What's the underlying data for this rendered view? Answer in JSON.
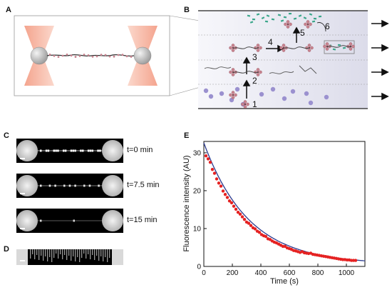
{
  "panels": {
    "a": "A",
    "b": "B",
    "c": "C",
    "d": "D",
    "e": "E"
  },
  "panel_b": {
    "step_labels": [
      "1",
      "2",
      "3",
      "4",
      "5",
      "6"
    ]
  },
  "panel_c": {
    "time_labels": [
      "t=0 min",
      "t=7.5 min",
      "t=15 min"
    ]
  },
  "colors": {
    "laser": "#f6b7a5",
    "bead": "#c9c9c9",
    "channel": "#eeeef6",
    "protein": "#c8838f",
    "fluor": "#3aa68a",
    "vesicle": "#9b91cf",
    "data_point": "#e52222",
    "fit_line": "#2b3a8f"
  },
  "chart_data": {
    "type": "scatter",
    "title": "",
    "xlabel": "Time (s)",
    "ylabel": "Fluorescence intensity (AU)",
    "xlim": [
      0,
      1130
    ],
    "ylim": [
      0,
      33
    ],
    "xticks": [
      0,
      200,
      400,
      600,
      800,
      1000
    ],
    "yticks": [
      0,
      10,
      20,
      30
    ],
    "grid": false,
    "series": [
      {
        "kind": "points",
        "x": [
          15,
          30,
          45,
          60,
          75,
          90,
          105,
          120,
          135,
          150,
          165,
          180,
          195,
          210,
          225,
          240,
          255,
          270,
          285,
          300,
          315,
          330,
          345,
          360,
          375,
          390,
          405,
          420,
          435,
          450,
          465,
          480,
          495,
          510,
          525,
          540,
          555,
          570,
          585,
          600,
          615,
          630,
          645,
          660,
          675,
          690,
          705,
          720,
          735,
          750,
          765,
          780,
          795,
          810,
          825,
          840,
          855,
          870,
          885,
          900,
          915,
          930,
          945,
          960,
          975,
          990,
          1005,
          1020,
          1035,
          1050,
          1065
        ],
        "y": [
          29.2,
          28.4,
          27.5,
          25.6,
          24.6,
          23.1,
          22.0,
          21.2,
          19.9,
          19.0,
          18.2,
          17.3,
          16.8,
          15.9,
          15.1,
          14.3,
          13.8,
          13.1,
          12.4,
          11.7,
          11.4,
          10.8,
          10.2,
          9.9,
          9.3,
          9.0,
          8.4,
          8.1,
          7.9,
          7.3,
          7.1,
          6.7,
          6.4,
          6.2,
          5.9,
          5.6,
          5.3,
          5.3,
          4.9,
          4.7,
          4.5,
          4.2,
          4.1,
          3.9,
          3.7,
          3.9,
          3.6,
          3.5,
          3.4,
          3.5,
          3.2,
          3.1,
          3.0,
          2.9,
          2.8,
          2.7,
          2.6,
          2.5,
          2.4,
          2.3,
          2.2,
          2.1,
          2.0,
          1.9,
          1.8,
          1.8,
          1.7,
          1.7,
          1.6,
          1.6,
          1.6
        ]
      },
      {
        "kind": "fit",
        "model": "exponential decay",
        "a": 32.0,
        "tau": 315,
        "c": 0.6
      }
    ]
  }
}
